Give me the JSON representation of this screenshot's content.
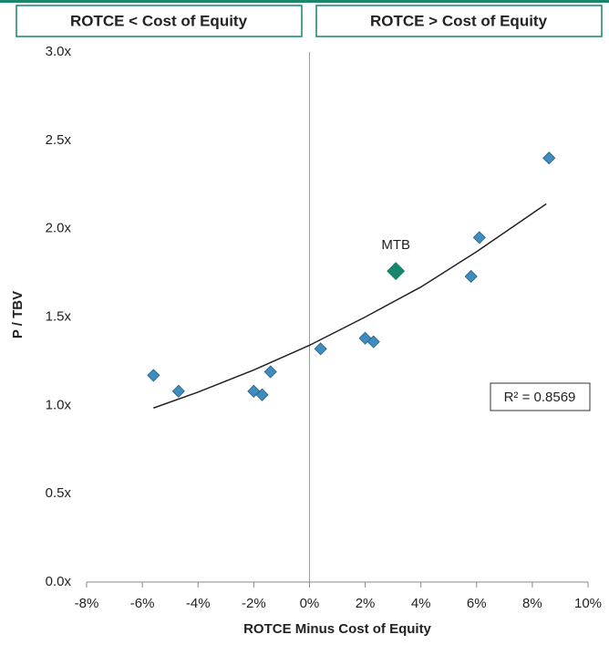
{
  "chart_data": {
    "type": "scatter",
    "headers": [
      "ROTCE < Cost of Equity",
      "ROTCE > Cost of Equity"
    ],
    "x_label": "ROTCE Minus Cost of Equity",
    "y_label": "P / TBV",
    "annotation": "R² = 0.8569",
    "series": [
      {
        "color": "#3d8dc0",
        "x": [
          -5.6,
          -4.7,
          -2.0,
          -1.7,
          -1.4,
          0.4,
          2.0,
          2.3,
          5.8,
          6.1,
          8.6
        ],
        "values": [
          1.17,
          1.08,
          1.08,
          1.06,
          1.19,
          1.32,
          1.38,
          1.36,
          1.73,
          1.95,
          2.4
        ]
      },
      {
        "name": "MTB",
        "color": "#17866a",
        "x": [
          3.1
        ],
        "values": [
          1.76
        ]
      }
    ],
    "trendline": {
      "color": "#222222",
      "x": [
        -5.6,
        -4,
        -2,
        0,
        2,
        4,
        6,
        8.5
      ],
      "values": [
        0.985,
        1.075,
        1.2,
        1.34,
        1.5,
        1.67,
        1.87,
        2.14
      ]
    },
    "xlim": [
      -8,
      10
    ],
    "ylim": [
      0,
      3
    ],
    "xticks": [
      {
        "value": -8,
        "label": "-8%"
      },
      {
        "value": -6,
        "label": "-6%"
      },
      {
        "value": -4,
        "label": "-4%"
      },
      {
        "value": -2,
        "label": "-2%"
      },
      {
        "value": 0,
        "label": "0%"
      },
      {
        "value": 2,
        "label": "2%"
      },
      {
        "value": 4,
        "label": "4%"
      },
      {
        "value": 6,
        "label": "6%"
      },
      {
        "value": 8,
        "label": "8%"
      },
      {
        "value": 10,
        "label": "10%"
      }
    ],
    "yticks": [
      {
        "value": 0,
        "label": "0.0x"
      },
      {
        "value": 0.5,
        "label": "0.5x"
      },
      {
        "value": 1,
        "label": "1.0x"
      },
      {
        "value": 1.5,
        "label": "1.5x"
      },
      {
        "value": 2,
        "label": "2.0x"
      },
      {
        "value": 2.5,
        "label": "2.5x"
      },
      {
        "value": 3,
        "label": "3.0x"
      }
    ]
  }
}
